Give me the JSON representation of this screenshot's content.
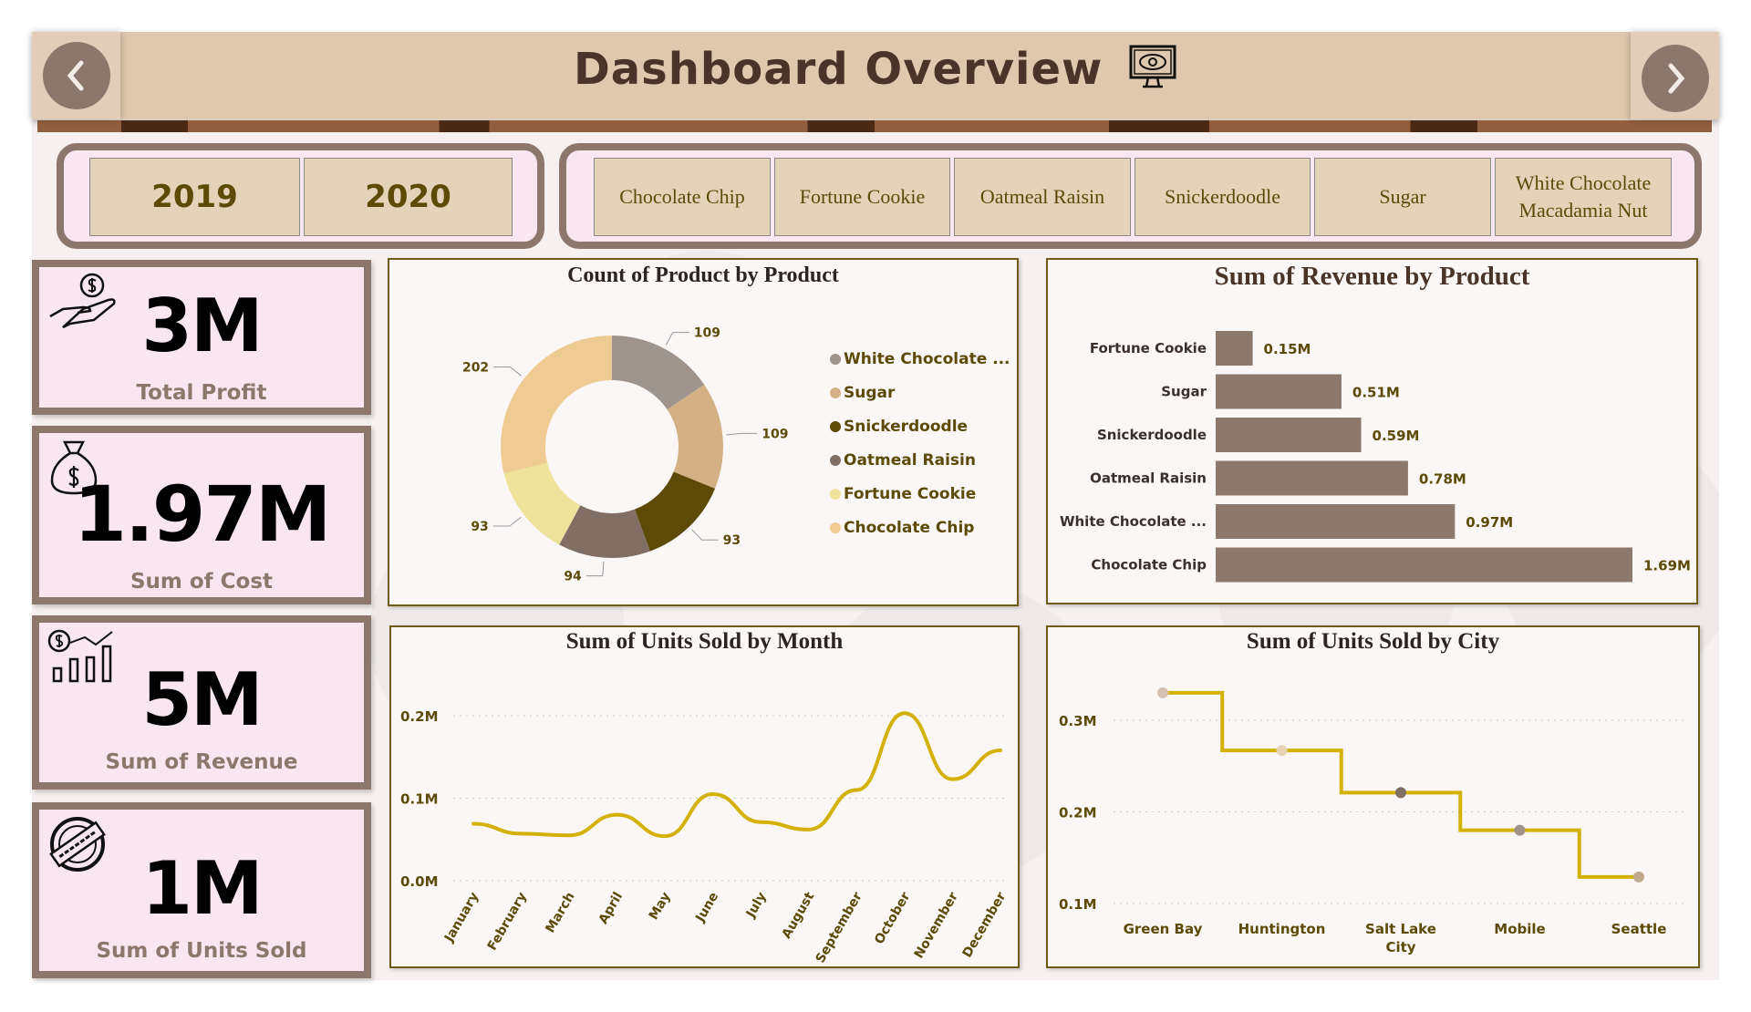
{
  "header": {
    "title": "Dashboard Overview",
    "title_icon": "eye-monitor-icon",
    "prev_icon": "chevron-left-icon",
    "next_icon": "chevron-right-icon"
  },
  "year_slicer": {
    "items": [
      "2019",
      "2020"
    ]
  },
  "product_slicer": {
    "items": [
      "Chocolate Chip",
      "Fortune Cookie",
      "Oatmeal Raisin",
      "Snickerdoodle",
      "Sugar",
      "White Chocolate Macadamia Nut"
    ]
  },
  "kpis": [
    {
      "value": "3M",
      "label": "Total Profit",
      "icon": "hand-coin-icon"
    },
    {
      "value": "1.97M",
      "label": "Sum of Cost",
      "icon": "money-bag-icon"
    },
    {
      "value": "5M",
      "label": "Sum of Revenue",
      "icon": "revenue-growth-icon"
    },
    {
      "value": "1M",
      "label": "Sum of Units Sold",
      "icon": "sold-out-stamp-icon"
    }
  ],
  "colors": {
    "accent": "#8d766c",
    "line": "#d4b106",
    "text_olive": "#5c4a06",
    "card_bg": "#f9e6f1",
    "slicer_bg": "#e5d3b9"
  },
  "chart_data": [
    {
      "type": "pie",
      "title": "Count of Product by Product",
      "donut": true,
      "categories": [
        "White Chocolate ...",
        "Sugar",
        "Snickerdoodle",
        "Oatmeal Raisin",
        "Fortune Cookie",
        "Chocolate Chip"
      ],
      "values": [
        109,
        109,
        93,
        94,
        93,
        202
      ],
      "colors": [
        "#9e948d",
        "#d4b185",
        "#5c4a06",
        "#816f66",
        "#efe29a",
        "#eecb93"
      ],
      "legend": "right"
    },
    {
      "type": "bar",
      "orientation": "horizontal",
      "title": "Sum of Revenue by Product",
      "categories": [
        "Fortune Cookie",
        "Sugar",
        "Snickerdoodle",
        "Oatmeal Raisin",
        "White Chocolate ...",
        "Chocolate Chip"
      ],
      "values": [
        0.15,
        0.51,
        0.59,
        0.78,
        0.97,
        1.69
      ],
      "data_labels": [
        "0.15M",
        "0.51M",
        "0.59M",
        "0.78M",
        "0.97M",
        "1.69M"
      ],
      "color": "#8d786d"
    },
    {
      "type": "line",
      "title": "Sum of Units Sold by Month",
      "categories": [
        "January",
        "February",
        "March",
        "April",
        "May",
        "June",
        "July",
        "August",
        "September",
        "October",
        "November",
        "December"
      ],
      "values": [
        0.069,
        0.057,
        0.055,
        0.08,
        0.054,
        0.105,
        0.071,
        0.062,
        0.11,
        0.203,
        0.123,
        0.158
      ],
      "yticks": [
        "0.0M",
        "0.1M",
        "0.2M"
      ],
      "ylim": [
        0,
        0.2
      ],
      "grid": true,
      "color": "#d4b106"
    },
    {
      "type": "line",
      "step": true,
      "title": "Sum of Units Sold by City",
      "categories": [
        "Green Bay",
        "Huntington",
        "Salt Lake City",
        "Mobile",
        "Seattle"
      ],
      "values": [
        0.33,
        0.267,
        0.221,
        0.18,
        0.129
      ],
      "yticks": [
        "0.1M",
        "0.2M",
        "0.3M"
      ],
      "ylim": [
        0.1,
        0.3
      ],
      "grid": true,
      "color": "#d4b106",
      "marker_colors": [
        "#d6c0b1",
        "#e8d4b4",
        "#816f66",
        "#a0928a",
        "#c0a98c"
      ]
    }
  ]
}
